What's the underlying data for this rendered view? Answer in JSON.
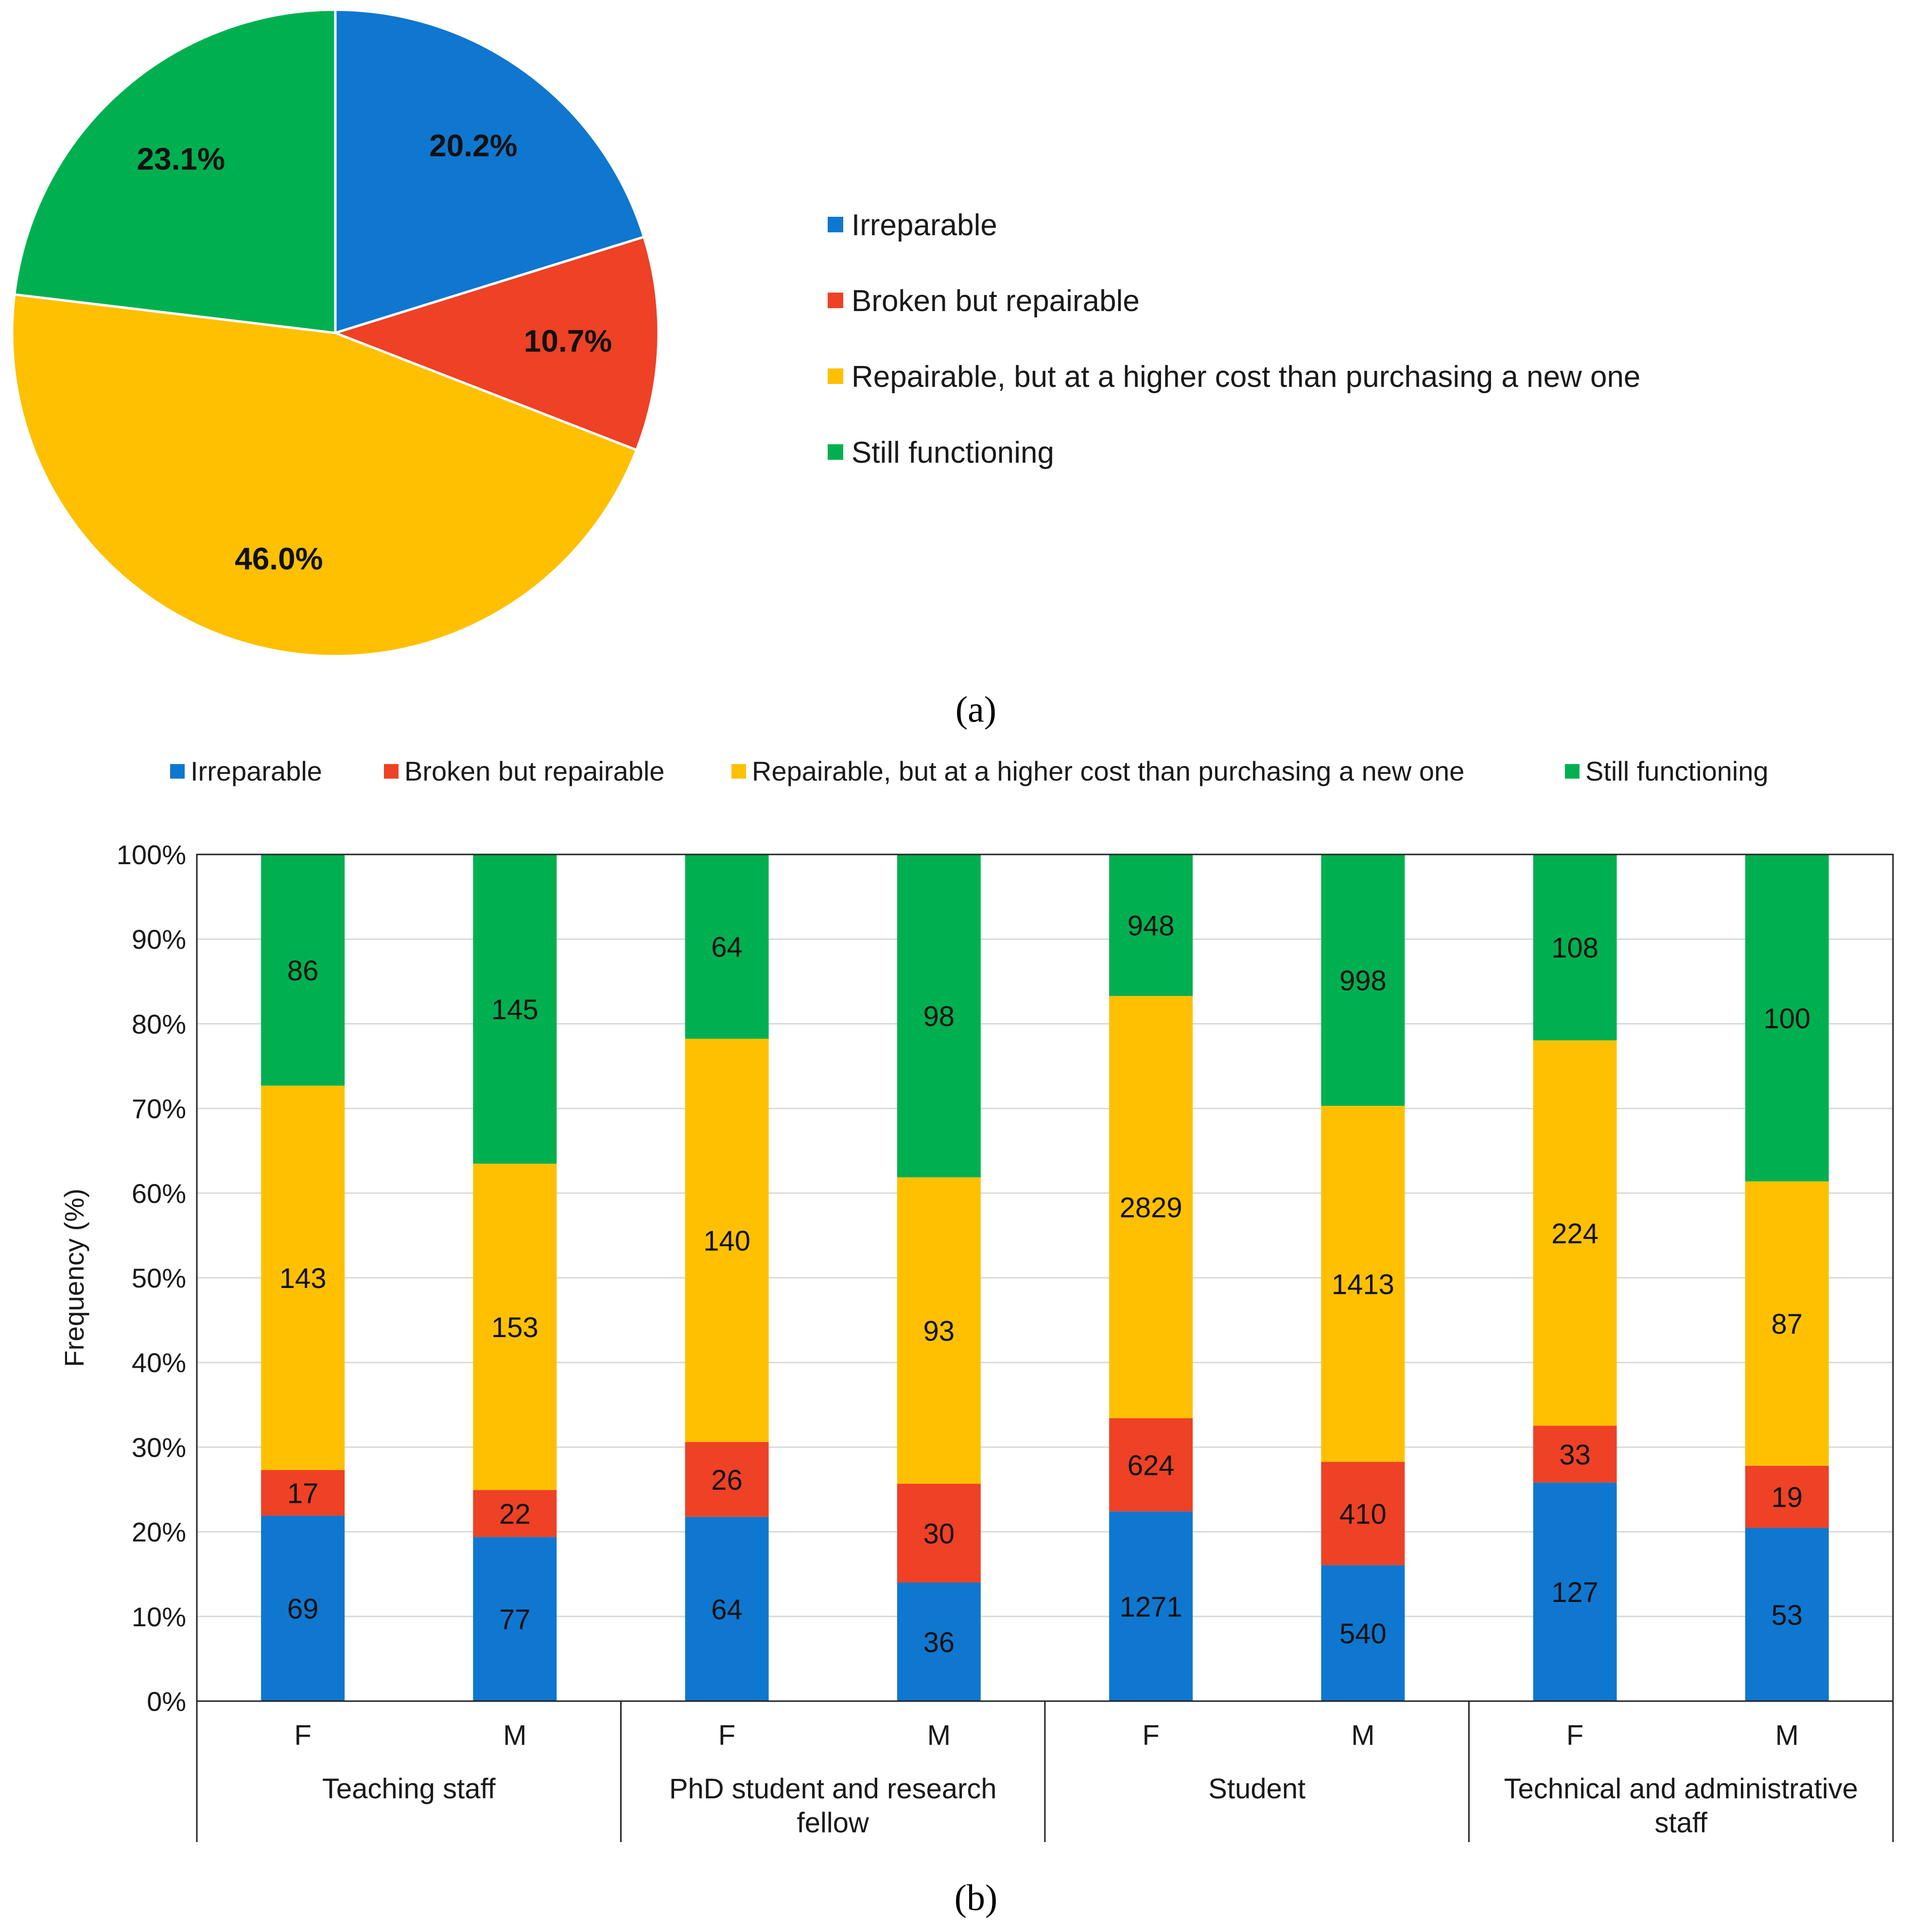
{
  "panel_a_label": "(a)",
  "panel_b_label": "(b)",
  "colors": {
    "Irreparable": "#0f77cf",
    "Broken but repairable": "#ee4125",
    "Repairable, but at a higher cost than purchasing a new one": "#fec000",
    "Still functioning": "#00b050"
  },
  "chart_data": [
    {
      "type": "pie",
      "title": "",
      "legend_position": "right",
      "slices": [
        {
          "label": "Irreparable",
          "value": 20.2,
          "data_label": "20.2%"
        },
        {
          "label": "Broken but repairable",
          "value": 10.7,
          "data_label": "10.7%"
        },
        {
          "label": "Repairable, but at a higher cost than purchasing a new one",
          "value": 46.0,
          "data_label": "46.0%"
        },
        {
          "label": "Still functioning",
          "value": 23.1,
          "data_label": "23.1%"
        }
      ]
    },
    {
      "type": "bar",
      "stacked": "percent",
      "title": "",
      "xlabel": "",
      "ylabel": "Frequency (%)",
      "ylim": [
        0,
        100
      ],
      "yticks": [
        "0%",
        "10%",
        "20%",
        "30%",
        "40%",
        "50%",
        "60%",
        "70%",
        "80%",
        "90%",
        "100%"
      ],
      "legend_position": "top",
      "grid": true,
      "groups": [
        "Teaching staff",
        "PhD student and research fellow",
        "Student",
        "Technical and administrative staff"
      ],
      "categories": [
        "F",
        "M",
        "F",
        "M",
        "F",
        "M",
        "F",
        "M"
      ],
      "series": [
        {
          "name": "Irreparable",
          "values": [
            69,
            77,
            64,
            36,
            1271,
            540,
            127,
            53
          ]
        },
        {
          "name": "Broken but repairable",
          "values": [
            17,
            22,
            26,
            30,
            624,
            410,
            33,
            19
          ]
        },
        {
          "name": "Repairable, but at a higher cost than purchasing a new one",
          "values": [
            143,
            153,
            140,
            93,
            2829,
            1413,
            224,
            87
          ]
        },
        {
          "name": "Still functioning",
          "values": [
            86,
            145,
            64,
            98,
            948,
            998,
            108,
            100
          ]
        }
      ]
    }
  ]
}
